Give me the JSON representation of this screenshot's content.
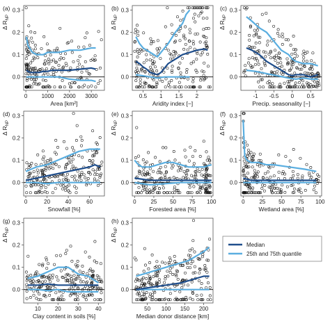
{
  "chart_data": [
    {
      "type": "scatter",
      "label": "(a)",
      "xlabel": "Area [km²]",
      "ylabel": "Δ R_NP",
      "xlim": [
        -100,
        3600
      ],
      "ylim": [
        -0.06,
        0.32
      ],
      "xticks": [
        0,
        1000,
        2000,
        3000
      ],
      "yticks": [
        0.0,
        0.1,
        0.2,
        0.3
      ],
      "median": [
        [
          20,
          0.03
        ],
        [
          100,
          0.025
        ],
        [
          200,
          0.02
        ],
        [
          400,
          0.02
        ],
        [
          600,
          0.02
        ],
        [
          800,
          0.025
        ],
        [
          1000,
          0.025
        ],
        [
          1200,
          0.03
        ],
        [
          1500,
          0.03
        ],
        [
          2000,
          0.03
        ],
        [
          2500,
          0.035
        ],
        [
          3000,
          0.04
        ],
        [
          3200,
          0.035
        ]
      ],
      "q25": [
        [
          20,
          0.0
        ],
        [
          200,
          0.0
        ],
        [
          500,
          0.0
        ],
        [
          1000,
          0.0
        ],
        [
          1500,
          0.0
        ],
        [
          2000,
          -0.01
        ],
        [
          2500,
          -0.015
        ],
        [
          3000,
          -0.015
        ],
        [
          3200,
          -0.02
        ]
      ],
      "q75": [
        [
          20,
          0.18
        ],
        [
          100,
          0.14
        ],
        [
          300,
          0.11
        ],
        [
          500,
          0.1
        ],
        [
          800,
          0.1
        ],
        [
          1000,
          0.11
        ],
        [
          1500,
          0.11
        ],
        [
          2000,
          0.12
        ],
        [
          2500,
          0.12
        ],
        [
          3000,
          0.13
        ],
        [
          3200,
          0.13
        ]
      ],
      "n_points": 220,
      "seed": 11
    },
    {
      "type": "scatter",
      "label": "(b)",
      "xlabel": "Aridity index [−]",
      "ylabel": "Δ R_NP",
      "xlim": [
        0.2,
        2.45
      ],
      "ylim": [
        -0.06,
        0.32
      ],
      "xticks": [
        0.5,
        1.0,
        1.5,
        2.0
      ],
      "yticks": [
        0.0,
        0.1,
        0.2,
        0.3
      ],
      "median": [
        [
          0.3,
          0.07
        ],
        [
          0.4,
          0.06
        ],
        [
          0.5,
          0.045
        ],
        [
          0.6,
          0.035
        ],
        [
          0.7,
          0.02
        ],
        [
          0.8,
          0.015
        ],
        [
          0.9,
          0.01
        ],
        [
          1.0,
          0.02
        ],
        [
          1.1,
          0.04
        ],
        [
          1.2,
          0.06
        ],
        [
          1.4,
          0.08
        ],
        [
          1.6,
          0.1
        ],
        [
          1.8,
          0.11
        ],
        [
          2.0,
          0.12
        ],
        [
          2.2,
          0.125
        ],
        [
          2.3,
          0.12
        ]
      ],
      "q25": [
        [
          0.3,
          0.01
        ],
        [
          0.5,
          0.005
        ],
        [
          0.7,
          0.0
        ],
        [
          0.9,
          -0.005
        ],
        [
          1.1,
          0.0
        ],
        [
          1.3,
          0.0
        ],
        [
          1.5,
          0.0
        ],
        [
          1.7,
          0.0
        ],
        [
          1.8,
          0.0
        ]
      ],
      "q75": [
        [
          0.3,
          0.18
        ],
        [
          0.4,
          0.15
        ],
        [
          0.5,
          0.13
        ],
        [
          0.6,
          0.12
        ],
        [
          0.8,
          0.1
        ],
        [
          0.9,
          0.09
        ],
        [
          1.0,
          0.11
        ],
        [
          1.2,
          0.15
        ],
        [
          1.4,
          0.2
        ],
        [
          1.5,
          0.22
        ],
        [
          1.6,
          0.24
        ],
        [
          1.7,
          0.28
        ],
        [
          1.8,
          0.3
        ]
      ],
      "n_points": 240,
      "seed": 23
    },
    {
      "type": "scatter",
      "label": "(c)",
      "xlabel": "Precip. seasonality [−]",
      "ylabel": "Δ R_NP",
      "xlim": [
        -1.4,
        0.8
      ],
      "ylim": [
        -0.06,
        0.32
      ],
      "xticks": [
        -1.0,
        -0.5,
        0.0,
        0.5
      ],
      "yticks": [
        0.0,
        0.1,
        0.2,
        0.3
      ],
      "median": [
        [
          -1.25,
          0.13
        ],
        [
          -1.1,
          0.12
        ],
        [
          -0.9,
          0.1
        ],
        [
          -0.7,
          0.07
        ],
        [
          -0.5,
          0.05
        ],
        [
          -0.3,
          0.03
        ],
        [
          -0.1,
          0.01
        ],
        [
          0.0,
          0.005
        ],
        [
          0.1,
          0.01
        ],
        [
          0.3,
          0.01
        ],
        [
          0.5,
          0.0
        ],
        [
          0.7,
          0.01
        ]
      ],
      "q25": [
        [
          -1.25,
          0.03
        ],
        [
          -1.0,
          0.025
        ],
        [
          -0.7,
          0.015
        ],
        [
          -0.4,
          0.005
        ],
        [
          -0.1,
          -0.005
        ],
        [
          0.1,
          -0.01
        ],
        [
          0.3,
          -0.005
        ],
        [
          0.5,
          -0.01
        ],
        [
          0.7,
          -0.01
        ]
      ],
      "q75": [
        [
          -1.25,
          0.27
        ],
        [
          -1.1,
          0.25
        ],
        [
          -0.9,
          0.22
        ],
        [
          -0.7,
          0.2
        ],
        [
          -0.5,
          0.16
        ],
        [
          -0.3,
          0.12
        ],
        [
          -0.1,
          0.1
        ],
        [
          0.0,
          0.08
        ],
        [
          0.1,
          0.07
        ],
        [
          0.3,
          0.06
        ],
        [
          0.5,
          0.06
        ],
        [
          0.7,
          0.05
        ]
      ],
      "n_points": 240,
      "seed": 37
    },
    {
      "type": "scatter",
      "label": "(d)",
      "xlabel": "Snowfall [%]",
      "ylabel": "Δ R_NP",
      "xlim": [
        -2,
        74
      ],
      "ylim": [
        -0.06,
        0.32
      ],
      "xticks": [
        0,
        20,
        40,
        60
      ],
      "yticks": [
        0.0,
        0.1,
        0.2,
        0.3
      ],
      "median": [
        [
          0,
          0.01
        ],
        [
          5,
          0.015
        ],
        [
          10,
          0.02
        ],
        [
          20,
          0.03
        ],
        [
          30,
          0.04
        ],
        [
          40,
          0.05
        ],
        [
          50,
          0.06
        ],
        [
          60,
          0.07
        ],
        [
          65,
          0.08
        ],
        [
          70,
          0.07
        ]
      ],
      "q25": [
        [
          0,
          0.0
        ],
        [
          10,
          0.0
        ],
        [
          20,
          -0.005
        ],
        [
          30,
          0.0
        ],
        [
          40,
          0.0
        ],
        [
          50,
          0.0
        ],
        [
          60,
          0.0
        ],
        [
          70,
          0.0
        ]
      ],
      "q75": [
        [
          0,
          0.05
        ],
        [
          5,
          0.06
        ],
        [
          10,
          0.07
        ],
        [
          20,
          0.08
        ],
        [
          30,
          0.1
        ],
        [
          40,
          0.12
        ],
        [
          50,
          0.14
        ],
        [
          60,
          0.15
        ],
        [
          70,
          0.15
        ]
      ],
      "n_points": 220,
      "seed": 41
    },
    {
      "type": "scatter",
      "label": "(e)",
      "xlabel": "Forested area [%]",
      "ylabel": "Δ R_NP",
      "xlim": [
        -3,
        102
      ],
      "ylim": [
        -0.06,
        0.32
      ],
      "xticks": [
        0,
        25,
        50,
        75,
        100
      ],
      "yticks": [
        0.0,
        0.1,
        0.2,
        0.3
      ],
      "median": [
        [
          0,
          0.02
        ],
        [
          10,
          0.015
        ],
        [
          20,
          0.01
        ],
        [
          40,
          0.01
        ],
        [
          60,
          0.01
        ],
        [
          80,
          0.01
        ],
        [
          90,
          0.01
        ],
        [
          100,
          0.01
        ]
      ],
      "q25": [
        [
          0,
          0.0
        ],
        [
          20,
          -0.01
        ],
        [
          40,
          -0.005
        ],
        [
          60,
          0.0
        ],
        [
          80,
          0.0
        ],
        [
          100,
          0.0
        ]
      ],
      "q75": [
        [
          0,
          0.1
        ],
        [
          5,
          0.08
        ],
        [
          10,
          0.07
        ],
        [
          20,
          0.07
        ],
        [
          30,
          0.08
        ],
        [
          40,
          0.09
        ],
        [
          50,
          0.09
        ],
        [
          60,
          0.08
        ],
        [
          70,
          0.07
        ],
        [
          80,
          0.07
        ],
        [
          90,
          0.07
        ],
        [
          100,
          0.08
        ]
      ],
      "n_points": 240,
      "seed": 53
    },
    {
      "type": "scatter",
      "label": "(f)",
      "xlabel": "Wetland area [%]",
      "ylabel": "Δ R_NP",
      "xlim": [
        -3,
        102
      ],
      "ylim": [
        -0.06,
        0.32
      ],
      "xticks": [
        0,
        25,
        50,
        75,
        100
      ],
      "yticks": [
        0.0,
        0.1,
        0.2,
        0.3
      ],
      "median": [
        [
          0,
          0.02
        ],
        [
          5,
          0.015
        ],
        [
          10,
          0.01
        ],
        [
          20,
          0.01
        ],
        [
          30,
          0.01
        ],
        [
          40,
          0.01
        ],
        [
          60,
          0.01
        ],
        [
          80,
          0.01
        ],
        [
          95,
          0.01
        ]
      ],
      "q25": [
        [
          0,
          0.0
        ],
        [
          10,
          0.0
        ],
        [
          30,
          0.0
        ],
        [
          50,
          0.0
        ],
        [
          70,
          0.0
        ],
        [
          95,
          0.0
        ]
      ],
      "q75": [
        [
          0,
          0.28
        ],
        [
          2,
          0.12
        ],
        [
          5,
          0.1
        ],
        [
          10,
          0.09
        ],
        [
          20,
          0.09
        ],
        [
          30,
          0.08
        ],
        [
          40,
          0.08
        ],
        [
          60,
          0.07
        ],
        [
          80,
          0.06
        ],
        [
          95,
          0.05
        ]
      ],
      "n_points": 200,
      "seed": 61
    },
    {
      "type": "scatter",
      "label": "(g)",
      "xlabel": "Clay content in soils [%]",
      "ylabel": "Δ R_NP",
      "xlim": [
        3,
        43
      ],
      "ylim": [
        -0.06,
        0.32
      ],
      "xticks": [
        10,
        20,
        30,
        40
      ],
      "yticks": [
        0.0,
        0.1,
        0.2,
        0.3
      ],
      "median": [
        [
          5,
          0.02
        ],
        [
          10,
          0.02
        ],
        [
          15,
          0.025
        ],
        [
          20,
          0.02
        ],
        [
          25,
          0.02
        ],
        [
          30,
          0.02
        ],
        [
          35,
          0.02
        ],
        [
          40,
          0.02
        ]
      ],
      "q25": [
        [
          5,
          0.0
        ],
        [
          10,
          0.0
        ],
        [
          15,
          -0.005
        ],
        [
          20,
          0.0
        ],
        [
          25,
          -0.01
        ],
        [
          30,
          -0.01
        ],
        [
          35,
          -0.01
        ],
        [
          40,
          -0.01
        ]
      ],
      "q75": [
        [
          5,
          0.05
        ],
        [
          10,
          0.06
        ],
        [
          15,
          0.08
        ],
        [
          20,
          0.1
        ],
        [
          25,
          0.1
        ],
        [
          30,
          0.07
        ],
        [
          35,
          0.06
        ],
        [
          40,
          0.03
        ]
      ],
      "n_points": 230,
      "seed": 71
    },
    {
      "type": "scatter",
      "label": "(h)",
      "xlabel": "Median donor distance [km]",
      "ylabel": "Δ R_NP",
      "xlim": [
        10,
        225
      ],
      "ylim": [
        -0.06,
        0.32
      ],
      "xticks": [
        50,
        100,
        150,
        200
      ],
      "yticks": [
        0.0,
        0.1,
        0.2,
        0.3
      ],
      "median": [
        [
          20,
          0.0
        ],
        [
          40,
          0.005
        ],
        [
          60,
          0.01
        ],
        [
          80,
          0.015
        ],
        [
          100,
          0.02
        ],
        [
          120,
          0.025
        ],
        [
          140,
          0.03
        ],
        [
          160,
          0.04
        ],
        [
          180,
          0.05
        ],
        [
          200,
          0.06
        ],
        [
          215,
          0.06
        ]
      ],
      "q25": [
        [
          20,
          0.0
        ],
        [
          50,
          0.0
        ],
        [
          80,
          0.0
        ],
        [
          110,
          0.0
        ],
        [
          140,
          0.0
        ],
        [
          170,
          0.0
        ],
        [
          200,
          0.0
        ],
        [
          215,
          0.0
        ]
      ],
      "q75": [
        [
          20,
          0.06
        ],
        [
          40,
          0.07
        ],
        [
          60,
          0.08
        ],
        [
          80,
          0.09
        ],
        [
          100,
          0.1
        ],
        [
          120,
          0.11
        ],
        [
          140,
          0.12
        ],
        [
          160,
          0.13
        ],
        [
          180,
          0.15
        ],
        [
          200,
          0.17
        ],
        [
          215,
          0.19
        ]
      ],
      "n_points": 240,
      "seed": 83
    }
  ],
  "legend": {
    "items": [
      {
        "label": "Median",
        "color": "#1f4e8c"
      },
      {
        "label": "25th and 75th quantile",
        "color": "#5aaee0"
      }
    ]
  },
  "colors": {
    "median": "#1f4e8c",
    "quantile": "#5aaee0",
    "points": "#111111"
  }
}
